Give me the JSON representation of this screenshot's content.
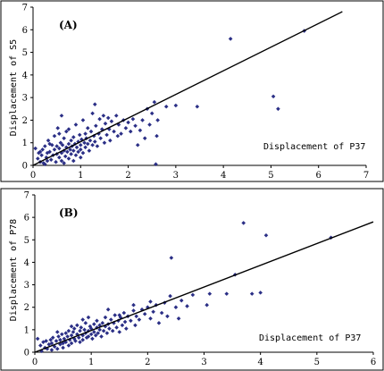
{
  "chart_data": [
    {
      "type": "scatter",
      "panel_label": "(A)",
      "xlabel": "Displacement of P37",
      "ylabel": "Displacement of S5",
      "xlim": [
        0,
        7
      ],
      "ylim": [
        0,
        7
      ],
      "xticks": [
        0,
        1,
        2,
        3,
        4,
        5,
        6,
        7
      ],
      "yticks": [
        0,
        1,
        2,
        3,
        4,
        5,
        6,
        7
      ],
      "grid": false,
      "fit_line": {
        "x": [
          0,
          6.5
        ],
        "y": [
          0,
          6.8
        ]
      },
      "points": [
        [
          0.05,
          0.75
        ],
        [
          0.1,
          0.3
        ],
        [
          0.12,
          0.55
        ],
        [
          0.15,
          0.15
        ],
        [
          0.18,
          0.45
        ],
        [
          0.2,
          0.7
        ],
        [
          0.22,
          0.1
        ],
        [
          0.25,
          0.85
        ],
        [
          0.28,
          0.35
        ],
        [
          0.3,
          0.2
        ],
        [
          0.3,
          0.55
        ],
        [
          0.32,
          1.1
        ],
        [
          0.35,
          0.6
        ],
        [
          0.38,
          0.25
        ],
        [
          0.4,
          0.9
        ],
        [
          0.42,
          0.45
        ],
        [
          0.45,
          0.7
        ],
        [
          0.45,
          1.3
        ],
        [
          0.48,
          0.15
        ],
        [
          0.5,
          0.5
        ],
        [
          0.5,
          0.85
        ],
        [
          0.52,
          1.65
        ],
        [
          0.55,
          0.35
        ],
        [
          0.55,
          0.75
        ],
        [
          0.58,
          1.0
        ],
        [
          0.6,
          0.55
        ],
        [
          0.6,
          0.2
        ],
        [
          0.62,
          0.9
        ],
        [
          0.65,
          0.65
        ],
        [
          0.65,
          1.2
        ],
        [
          0.68,
          0.4
        ],
        [
          0.7,
          0.8
        ],
        [
          0.7,
          1.5
        ],
        [
          0.72,
          0.6
        ],
        [
          0.75,
          0.95
        ],
        [
          0.75,
          0.3
        ],
        [
          0.78,
          0.7
        ],
        [
          0.8,
          1.1
        ],
        [
          0.8,
          0.5
        ],
        [
          0.82,
          0.85
        ],
        [
          0.85,
          1.25
        ],
        [
          0.85,
          0.65
        ],
        [
          0.88,
          0.95
        ],
        [
          0.9,
          1.8
        ],
        [
          0.9,
          0.45
        ],
        [
          0.92,
          0.8
        ],
        [
          0.95,
          1.05
        ],
        [
          0.95,
          0.6
        ],
        [
          0.98,
          1.35
        ],
        [
          1.0,
          0.9
        ],
        [
          1.0,
          0.7
        ],
        [
          1.02,
          1.15
        ],
        [
          1.05,
          0.55
        ],
        [
          1.05,
          2.0
        ],
        [
          1.08,
          1.0
        ],
        [
          1.1,
          0.8
        ],
        [
          1.1,
          1.4
        ],
        [
          1.12,
          1.2
        ],
        [
          1.15,
          0.95
        ],
        [
          1.15,
          1.65
        ],
        [
          1.18,
          0.65
        ],
        [
          1.2,
          1.1
        ],
        [
          1.22,
          1.5
        ],
        [
          1.25,
          0.9
        ],
        [
          1.25,
          2.3
        ],
        [
          1.28,
          1.3
        ],
        [
          1.3,
          1.05
        ],
        [
          1.32,
          1.75
        ],
        [
          1.35,
          0.85
        ],
        [
          1.38,
          1.4
        ],
        [
          1.4,
          2.05
        ],
        [
          1.42,
          1.2
        ],
        [
          1.45,
          1.6
        ],
        [
          1.48,
          2.2
        ],
        [
          1.5,
          1.0
        ],
        [
          1.52,
          1.85
        ],
        [
          1.55,
          1.35
        ],
        [
          1.58,
          2.1
        ],
        [
          1.6,
          1.6
        ],
        [
          1.62,
          1.1
        ],
        [
          1.65,
          1.95
        ],
        [
          1.7,
          1.5
        ],
        [
          1.75,
          2.2
        ],
        [
          1.78,
          1.3
        ],
        [
          1.8,
          1.8
        ],
        [
          1.85,
          1.4
        ],
        [
          1.9,
          2.0
        ],
        [
          1.95,
          1.65
        ],
        [
          2.0,
          1.9
        ],
        [
          2.05,
          1.5
        ],
        [
          2.1,
          2.05
        ],
        [
          2.15,
          1.75
        ],
        [
          2.2,
          0.9
        ],
        [
          2.25,
          1.55
        ],
        [
          2.3,
          2.0
        ],
        [
          2.35,
          1.2
        ],
        [
          2.4,
          2.5
        ],
        [
          2.45,
          1.8
        ],
        [
          2.5,
          2.3
        ],
        [
          2.55,
          2.8
        ],
        [
          2.6,
          1.3
        ],
        [
          2.62,
          2.0
        ],
        [
          2.58,
          0.05
        ],
        [
          2.8,
          2.6
        ],
        [
          3.0,
          2.65
        ],
        [
          3.45,
          2.6
        ],
        [
          4.15,
          5.6
        ],
        [
          5.05,
          3.05
        ],
        [
          5.15,
          2.5
        ],
        [
          5.7,
          5.95
        ],
        [
          0.6,
          2.2
        ],
        [
          0.75,
          1.6
        ],
        [
          1.3,
          2.7
        ],
        [
          0.35,
          0.95
        ],
        [
          0.15,
          0.6
        ],
        [
          0.25,
          0.05
        ],
        [
          0.55,
          1.4
        ],
        [
          0.65,
          0.1
        ],
        [
          0.85,
          0.2
        ],
        [
          1.0,
          0.35
        ]
      ]
    },
    {
      "type": "scatter",
      "panel_label": "(B)",
      "xlabel": "Displacement of P37",
      "ylabel": "Displacement of P78",
      "xlim": [
        0,
        6
      ],
      "ylim": [
        0,
        7
      ],
      "xticks": [
        0,
        1,
        2,
        3,
        4,
        5,
        6
      ],
      "yticks": [
        0,
        1,
        2,
        3,
        4,
        5,
        6,
        7
      ],
      "grid": false,
      "fit_line": {
        "x": [
          0,
          6
        ],
        "y": [
          0,
          5.8
        ]
      },
      "points": [
        [
          0.05,
          0.6
        ],
        [
          0.1,
          0.3
        ],
        [
          0.12,
          0.05
        ],
        [
          0.15,
          0.45
        ],
        [
          0.18,
          0.2
        ],
        [
          0.2,
          0.5
        ],
        [
          0.22,
          0.15
        ],
        [
          0.25,
          0.35
        ],
        [
          0.28,
          0.55
        ],
        [
          0.3,
          0.1
        ],
        [
          0.3,
          0.4
        ],
        [
          0.32,
          0.65
        ],
        [
          0.35,
          0.25
        ],
        [
          0.38,
          0.5
        ],
        [
          0.4,
          0.15
        ],
        [
          0.42,
          0.7
        ],
        [
          0.45,
          0.35
        ],
        [
          0.45,
          0.55
        ],
        [
          0.48,
          0.8
        ],
        [
          0.5,
          0.4
        ],
        [
          0.5,
          0.2
        ],
        [
          0.52,
          0.6
        ],
        [
          0.55,
          0.85
        ],
        [
          0.55,
          0.45
        ],
        [
          0.58,
          0.7
        ],
        [
          0.6,
          0.3
        ],
        [
          0.6,
          0.95
        ],
        [
          0.62,
          0.55
        ],
        [
          0.65,
          0.75
        ],
        [
          0.65,
          0.4
        ],
        [
          0.68,
          0.9
        ],
        [
          0.7,
          0.6
        ],
        [
          0.7,
          1.05
        ],
        [
          0.72,
          0.5
        ],
        [
          0.75,
          0.8
        ],
        [
          0.75,
          1.2
        ],
        [
          0.78,
          0.65
        ],
        [
          0.8,
          0.95
        ],
        [
          0.8,
          0.45
        ],
        [
          0.82,
          1.1
        ],
        [
          0.85,
          0.75
        ],
        [
          0.85,
          0.55
        ],
        [
          0.88,
          1.0
        ],
        [
          0.9,
          0.85
        ],
        [
          0.9,
          1.3
        ],
        [
          0.92,
          0.65
        ],
        [
          0.95,
          0.95
        ],
        [
          0.95,
          0.7
        ],
        [
          0.98,
          1.15
        ],
        [
          1.0,
          0.8
        ],
        [
          1.0,
          1.05
        ],
        [
          1.02,
          0.6
        ],
        [
          1.05,
          1.25
        ],
        [
          1.05,
          0.9
        ],
        [
          1.08,
          0.75
        ],
        [
          1.1,
          1.1
        ],
        [
          1.1,
          1.4
        ],
        [
          1.12,
          0.85
        ],
        [
          1.15,
          1.0
        ],
        [
          1.15,
          1.2
        ],
        [
          1.18,
          0.7
        ],
        [
          1.2,
          1.3
        ],
        [
          1.22,
          0.95
        ],
        [
          1.25,
          1.15
        ],
        [
          1.25,
          1.55
        ],
        [
          1.28,
          0.85
        ],
        [
          1.3,
          1.25
        ],
        [
          1.32,
          1.05
        ],
        [
          1.35,
          1.45
        ],
        [
          1.38,
          0.95
        ],
        [
          1.4,
          1.3
        ],
        [
          1.42,
          1.65
        ],
        [
          1.45,
          1.1
        ],
        [
          1.48,
          1.4
        ],
        [
          1.5,
          0.9
        ],
        [
          1.52,
          1.55
        ],
        [
          1.55,
          1.2
        ],
        [
          1.58,
          1.75
        ],
        [
          1.6,
          1.35
        ],
        [
          1.62,
          1.05
        ],
        [
          1.65,
          1.6
        ],
        [
          1.7,
          1.4
        ],
        [
          1.75,
          1.85
        ],
        [
          1.78,
          1.2
        ],
        [
          1.8,
          1.6
        ],
        [
          1.85,
          1.45
        ],
        [
          1.9,
          1.9
        ],
        [
          1.95,
          1.7
        ],
        [
          2.0,
          2.0
        ],
        [
          2.05,
          1.5
        ],
        [
          2.1,
          1.8
        ],
        [
          2.15,
          2.1
        ],
        [
          2.2,
          1.3
        ],
        [
          2.25,
          1.75
        ],
        [
          2.3,
          2.2
        ],
        [
          2.35,
          1.6
        ],
        [
          2.4,
          2.5
        ],
        [
          2.42,
          4.2
        ],
        [
          2.5,
          2.0
        ],
        [
          2.55,
          1.5
        ],
        [
          2.6,
          2.3
        ],
        [
          2.7,
          2.05
        ],
        [
          2.8,
          2.55
        ],
        [
          3.05,
          2.1
        ],
        [
          3.1,
          2.6
        ],
        [
          3.4,
          2.6
        ],
        [
          3.55,
          3.45
        ],
        [
          3.7,
          5.75
        ],
        [
          3.85,
          2.6
        ],
        [
          4.0,
          2.65
        ],
        [
          4.1,
          5.2
        ],
        [
          5.25,
          5.1
        ],
        [
          0.85,
          1.45
        ],
        [
          1.3,
          1.9
        ],
        [
          1.5,
          1.65
        ],
        [
          2.05,
          2.25
        ],
        [
          0.65,
          1.15
        ],
        [
          0.4,
          0.9
        ],
        [
          0.95,
          1.55
        ],
        [
          1.75,
          2.1
        ]
      ]
    }
  ]
}
